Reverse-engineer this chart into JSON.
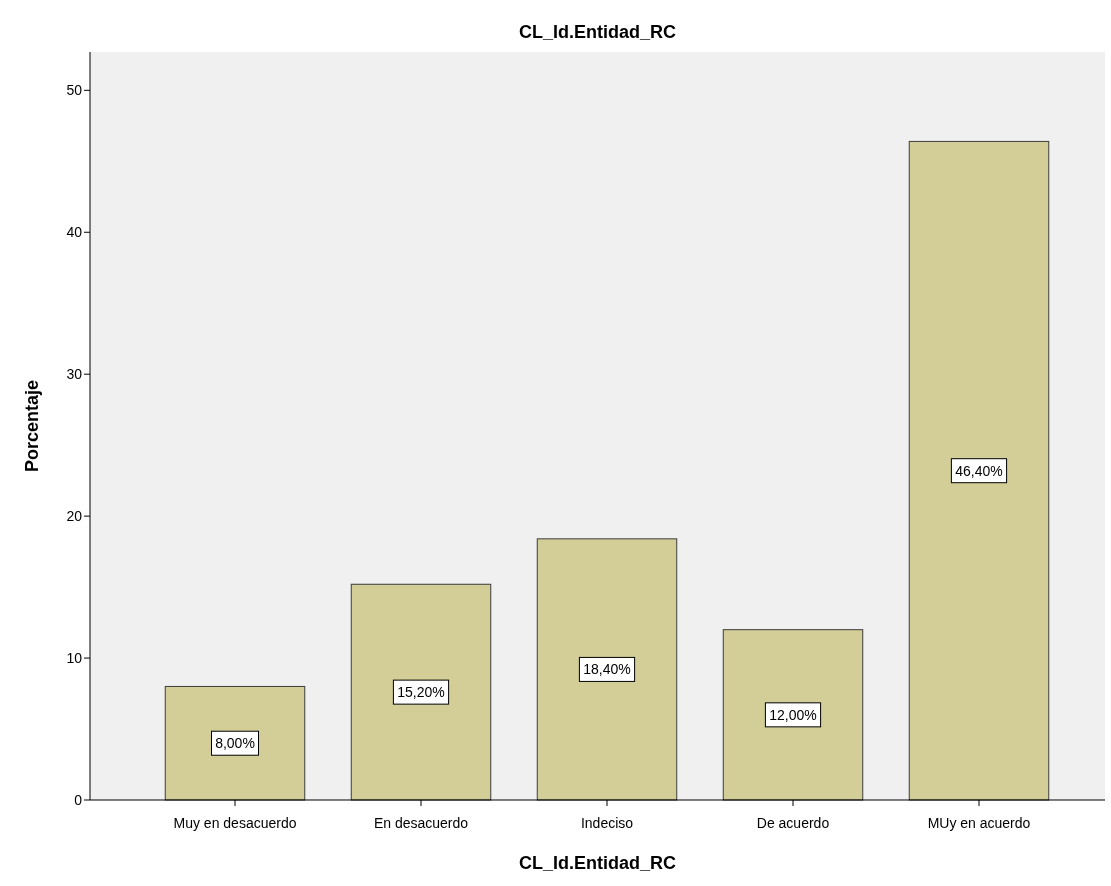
{
  "chart_data": {
    "type": "bar",
    "title": "CL_Id.Entidad_RC",
    "xlabel": "CL_Id.Entidad_RC",
    "ylabel": "Porcentaje",
    "categories": [
      "Muy en desacuerdo",
      "En desacuerdo",
      "Indeciso",
      "De acuerdo",
      "MUy en acuerdo"
    ],
    "values": [
      8,
      15.2,
      18.4,
      12,
      46.4
    ],
    "value_labels": [
      "8,00%",
      "15,20%",
      "18,40%",
      "12,00%",
      "46,40%"
    ],
    "color": "#d3ce97",
    "ylim": [
      0,
      52.7
    ],
    "yticks": [
      0,
      10,
      20,
      30,
      40,
      50
    ],
    "grid": false
  }
}
